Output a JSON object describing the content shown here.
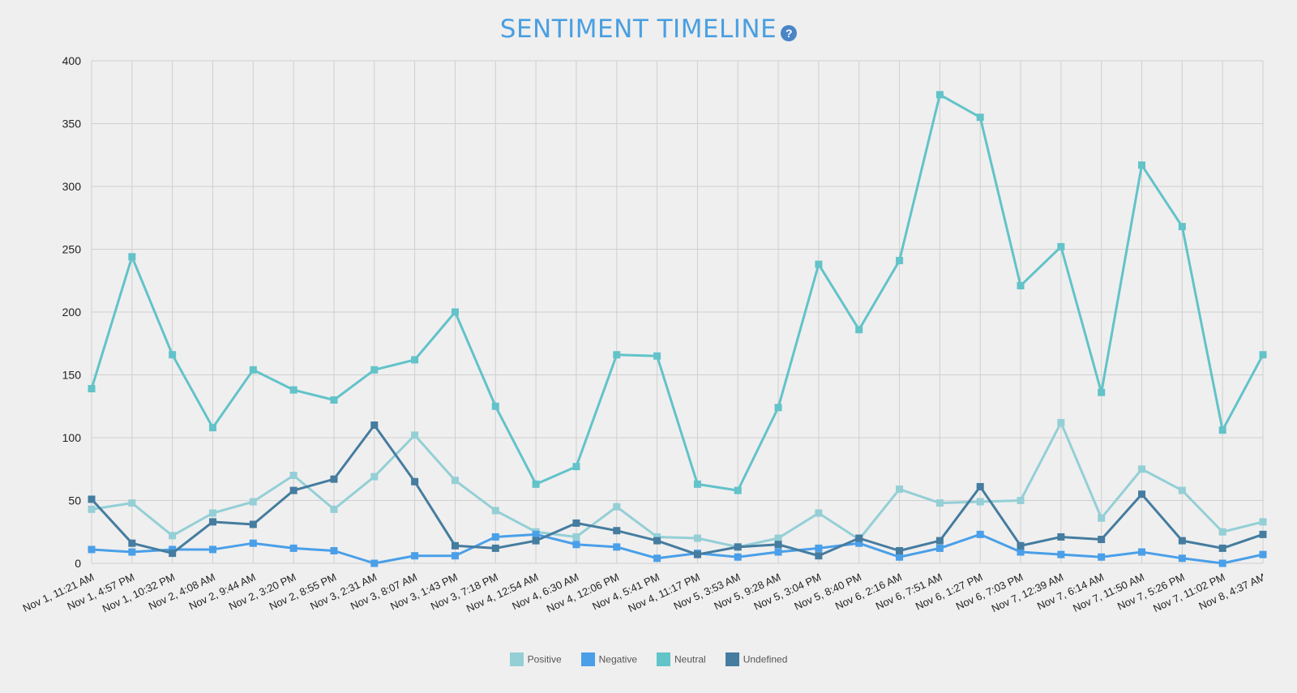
{
  "page": {
    "title": "SENTIMENT TIMELINE",
    "help_icon": "?"
  },
  "chart_data": {
    "type": "line",
    "title": "SENTIMENT TIMELINE",
    "xlabel": "",
    "ylabel": "",
    "ylim": [
      0,
      400
    ],
    "yticks": [
      0,
      50,
      100,
      150,
      200,
      250,
      300,
      350,
      400
    ],
    "grid": true,
    "legend_position": "bottom",
    "categories": [
      "Nov 1, 11:21 AM",
      "Nov 1, 4:57 PM",
      "Nov 1, 10:32 PM",
      "Nov 2, 4:08 AM",
      "Nov 2, 9:44 AM",
      "Nov 2, 3:20 PM",
      "Nov 2, 8:55 PM",
      "Nov 3, 2:31 AM",
      "Nov 3, 8:07 AM",
      "Nov 3, 1:43 PM",
      "Nov 3, 7:18 PM",
      "Nov 4, 12:54 AM",
      "Nov 4, 6:30 AM",
      "Nov 4, 12:06 PM",
      "Nov 4, 5:41 PM",
      "Nov 4, 11:17 PM",
      "Nov 5, 3:53 AM",
      "Nov 5, 9:28 AM",
      "Nov 5, 3:04 PM",
      "Nov 5, 8:40 PM",
      "Nov 6, 2:16 AM",
      "Nov 6, 7:51 AM",
      "Nov 6, 1:27 PM",
      "Nov 6, 7:03 PM",
      "Nov 7, 12:39 AM",
      "Nov 7, 6:14 AM",
      "Nov 7, 11:50 AM",
      "Nov 7, 5:26 PM",
      "Nov 7, 11:02 PM",
      "Nov 8, 4:37 AM"
    ],
    "series": [
      {
        "name": "Positive",
        "color": "#94cfd6",
        "values": [
          43,
          48,
          22,
          40,
          49,
          70,
          43,
          69,
          102,
          66,
          42,
          25,
          21,
          45,
          21,
          20,
          13,
          20,
          40,
          19,
          59,
          48,
          49,
          50,
          112,
          36,
          75,
          58,
          25,
          33
        ]
      },
      {
        "name": "Negative",
        "color": "#4a9fe8",
        "values": [
          11,
          9,
          11,
          11,
          16,
          12,
          10,
          0,
          6,
          6,
          21,
          23,
          15,
          13,
          4,
          8,
          5,
          9,
          12,
          16,
          5,
          12,
          23,
          9,
          7,
          5,
          9,
          4,
          0,
          7
        ]
      },
      {
        "name": "Neutral",
        "color": "#62c3c9",
        "values": [
          139,
          244,
          166,
          108,
          154,
          138,
          130,
          154,
          162,
          200,
          125,
          63,
          77,
          166,
          165,
          63,
          58,
          124,
          238,
          186,
          241,
          373,
          355,
          221,
          252,
          136,
          317,
          268,
          106,
          166
        ]
      },
      {
        "name": "Undefined",
        "color": "#457c9f",
        "values": [
          51,
          16,
          8,
          33,
          31,
          58,
          67,
          110,
          65,
          14,
          12,
          18,
          32,
          26,
          18,
          7,
          13,
          15,
          6,
          20,
          10,
          18,
          61,
          14,
          21,
          19,
          55,
          18,
          12,
          23
        ]
      }
    ]
  }
}
